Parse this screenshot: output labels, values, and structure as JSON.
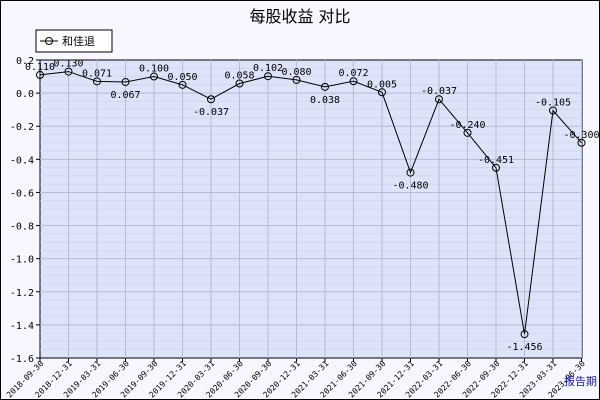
{
  "chart_data": {
    "type": "line",
    "title": "每股收益  对比",
    "xlabel": "报告期",
    "ylabel": "",
    "ylim": [
      -1.6,
      0.2
    ],
    "yticks": [
      -1.6,
      -1.4,
      -1.2,
      -1.0,
      -0.8,
      -0.6,
      -0.4,
      -0.2,
      0.0,
      0.2
    ],
    "ytick_labels": [
      "-1.6",
      "-1.4",
      "-1.2",
      "-1.0",
      "-0.8",
      "-0.6",
      "-0.4",
      "-0.2",
      "0.0",
      "0.2"
    ],
    "grid": true,
    "legend_position": "top-left",
    "colors": {
      "plot_bg": "#dde3f8",
      "line": "#000000",
      "grid": "#b4bcd8",
      "page_bg": "#f7f7ff"
    },
    "categories": [
      "2018-09-30",
      "2018-12-31",
      "2019-03-31",
      "2019-06-30",
      "2019-09-30",
      "2019-12-31",
      "2020-03-31",
      "2020-06-30",
      "2020-09-30",
      "2020-12-31",
      "2021-03-31",
      "2021-06-30",
      "2021-09-30",
      "2021-12-31",
      "2022-03-31",
      "2022-06-30",
      "2022-09-30",
      "2022-12-31",
      "2023-03-31",
      "2023-06-30"
    ],
    "series": [
      {
        "name": "和佳退",
        "values": [
          0.11,
          0.13,
          0.071,
          0.067,
          0.1,
          0.05,
          -0.037,
          0.058,
          0.102,
          0.08,
          0.038,
          0.072,
          0.005,
          -0.48,
          -0.037,
          -0.24,
          -0.451,
          -1.456,
          -0.105,
          -0.3
        ],
        "labels": [
          "0.110",
          "0.130",
          "0.071",
          "0.067",
          "0.100",
          "0.050",
          "-0.037",
          "0.058",
          "0.102",
          "0.080",
          "0.038",
          "0.072",
          "0.005",
          "-0.480",
          "-0.037",
          "-0.240",
          "-0.451",
          "-1.456",
          "-0.105",
          "-0.300"
        ]
      }
    ]
  }
}
